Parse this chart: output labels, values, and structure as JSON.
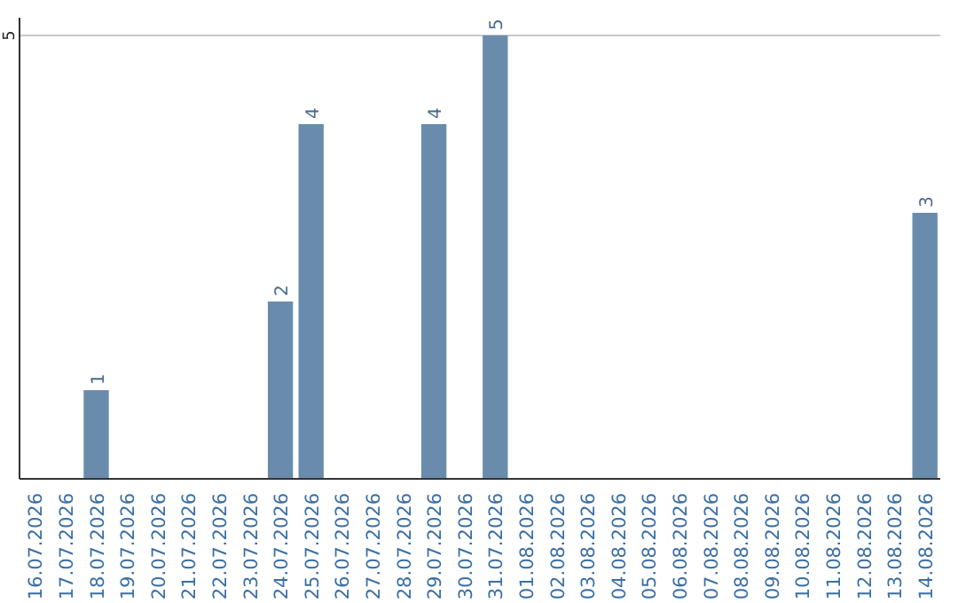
{
  "chart_data": {
    "type": "bar",
    "categories": [
      "16.07.2026",
      "17.07.2026",
      "18.07.2026",
      "19.07.2026",
      "20.07.2026",
      "21.07.2026",
      "22.07.2026",
      "23.07.2026",
      "24.07.2026",
      "25.07.2026",
      "26.07.2026",
      "27.07.2026",
      "28.07.2026",
      "29.07.2026",
      "30.07.2026",
      "31.07.2026",
      "01.08.2026",
      "02.08.2026",
      "03.08.2026",
      "04.08.2026",
      "05.08.2026",
      "06.08.2026",
      "07.08.2026",
      "08.08.2026",
      "09.08.2026",
      "10.08.2026",
      "11.08.2026",
      "12.08.2026",
      "13.08.2026",
      "14.08.2026"
    ],
    "values": [
      0,
      0,
      1,
      0,
      0,
      0,
      0,
      0,
      2,
      4,
      0,
      0,
      0,
      4,
      0,
      5,
      0,
      0,
      0,
      0,
      0,
      0,
      0,
      0,
      0,
      0,
      0,
      0,
      0,
      3
    ],
    "value_labels": [
      null,
      null,
      "1",
      null,
      null,
      null,
      null,
      null,
      "2",
      "4",
      null,
      null,
      null,
      "4",
      null,
      "5",
      null,
      null,
      null,
      null,
      null,
      null,
      null,
      null,
      null,
      null,
      null,
      null,
      null,
      "3"
    ],
    "color": "#6a8cac",
    "ylim": [
      0,
      5.2
    ],
    "yticks": [
      5
    ],
    "grid": "y"
  }
}
